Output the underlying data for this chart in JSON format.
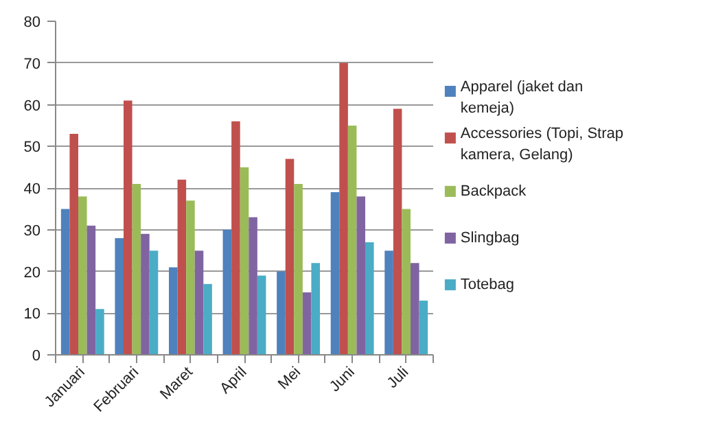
{
  "chart_data": {
    "type": "bar",
    "categories": [
      "Januari",
      "Februari",
      "Maret",
      "April",
      "Mei",
      "Juni",
      "Juli"
    ],
    "series": [
      {
        "name": "Apparel (jaket dan kemeja)",
        "color": "#4f81bd",
        "values": [
          35,
          28,
          21,
          30,
          20,
          39,
          25
        ]
      },
      {
        "name": "Accessories (Topi, Strap kamera, Gelang)",
        "color": "#c0504d",
        "values": [
          53,
          61,
          42,
          56,
          47,
          70,
          59
        ]
      },
      {
        "name": "Backpack",
        "color": "#9bbb59",
        "values": [
          38,
          41,
          37,
          45,
          41,
          55,
          35
        ]
      },
      {
        "name": "Slingbag",
        "color": "#8064a2",
        "values": [
          31,
          29,
          25,
          33,
          15,
          38,
          22
        ]
      },
      {
        "name": "Totebag",
        "color": "#4bacc6",
        "values": [
          11,
          25,
          17,
          19,
          22,
          27,
          13
        ]
      }
    ],
    "ylim": [
      0,
      80
    ],
    "yticks": [
      0,
      10,
      20,
      30,
      40,
      50,
      60,
      70,
      80
    ],
    "grid": "y",
    "legend": "right"
  }
}
